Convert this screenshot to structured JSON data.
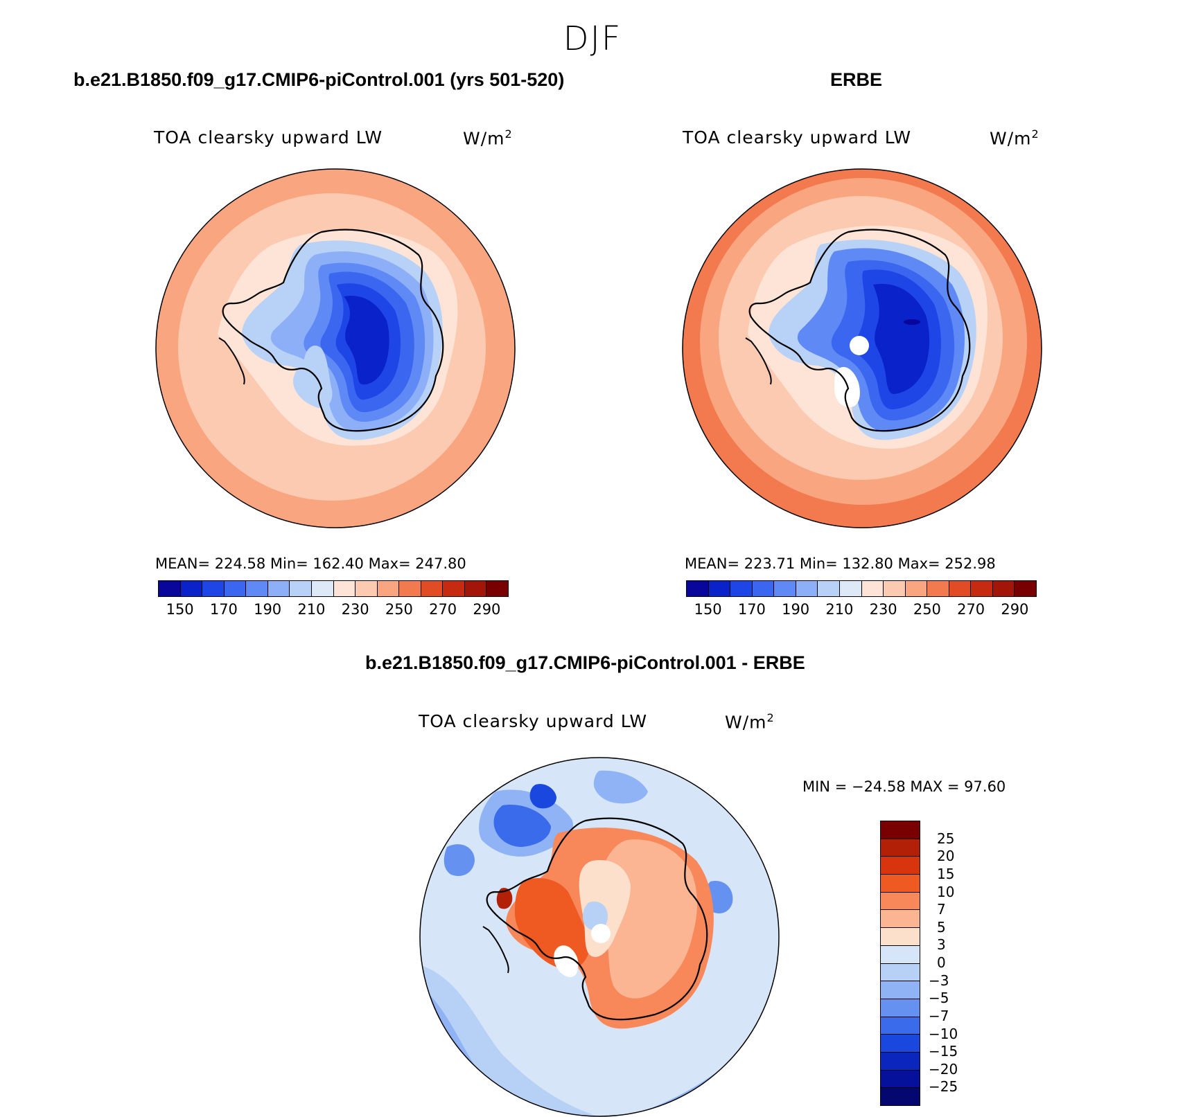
{
  "figure": {
    "season": "DJF"
  },
  "panels": [
    {
      "title": "b.e21.B1850.f09_g17.CMIP6-piControl.001 (yrs 501-520)",
      "subtitle": "TOA clearsky upward LW",
      "units": "W/m",
      "units_exp": "2",
      "stats": "MEAN= 224.58   Min= 162.40   Max= 247.80"
    },
    {
      "title": "ERBE",
      "subtitle": "TOA clearsky upward LW",
      "units": "W/m",
      "units_exp": "2",
      "stats": "MEAN= 223.71   Min= 132.80   Max= 252.98"
    },
    {
      "title": "b.e21.B1850.f09_g17.CMIP6-piControl.001 - ERBE",
      "subtitle": "TOA clearsky upward LW",
      "units": "W/m",
      "units_exp": "2",
      "stats": "MIN = −24.58 MAX =   97.60"
    }
  ],
  "colorbar_abs": {
    "colors": [
      "#08069b",
      "#0a22c9",
      "#1e46e6",
      "#3a66f0",
      "#5f8af5",
      "#8daff7",
      "#b8d1f7",
      "#dde9f7",
      "#fde4d6",
      "#fccab0",
      "#f9a680",
      "#f27a4e",
      "#e24c24",
      "#c62a11",
      "#a21508",
      "#780000"
    ],
    "labels": [
      "150",
      "170",
      "190",
      "210",
      "230",
      "250",
      "270",
      "290"
    ]
  },
  "colorbar_diff": {
    "colors": [
      "#780000",
      "#b32008",
      "#d8350e",
      "#ef5a22",
      "#f8875a",
      "#fbb592",
      "#fde0cc",
      "#d6e6f8",
      "#b6d0f6",
      "#8fb3f4",
      "#6592f0",
      "#3a6bea",
      "#1a47dd",
      "#0a26bc",
      "#05119a",
      "#03076f"
    ],
    "labels": [
      "25",
      "20",
      "15",
      "10",
      "7",
      "5",
      "3",
      "0",
      "−3",
      "−5",
      "−7",
      "−10",
      "−15",
      "−20",
      "−25"
    ]
  }
}
